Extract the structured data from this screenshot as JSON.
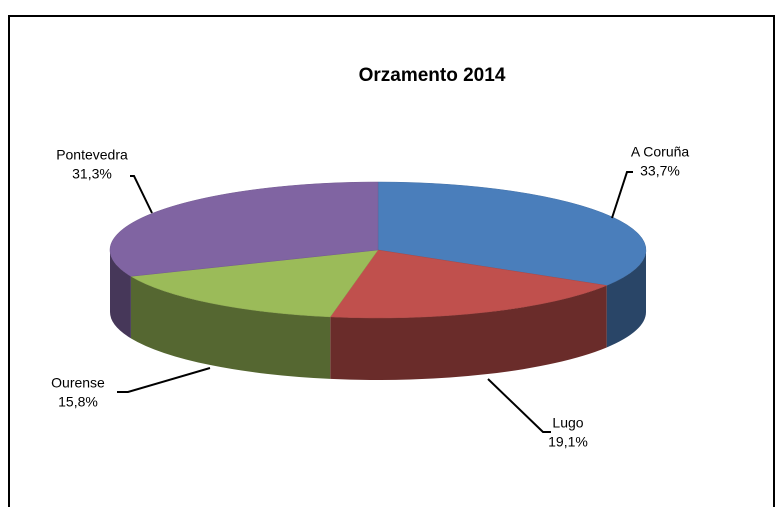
{
  "chart_data": {
    "type": "pie",
    "title": "Orzamento 2014",
    "categories": [
      "A Coruña",
      "Lugo",
      "Ourense",
      "Pontevedra"
    ],
    "values": [
      33.7,
      19.1,
      15.8,
      31.3
    ],
    "value_labels": [
      "33,7%",
      "19,1%",
      "15,8%",
      "31,3%"
    ],
    "colors": [
      "#4a7ebb",
      "#c0504d",
      "#9bbb59",
      "#8064a2"
    ]
  }
}
